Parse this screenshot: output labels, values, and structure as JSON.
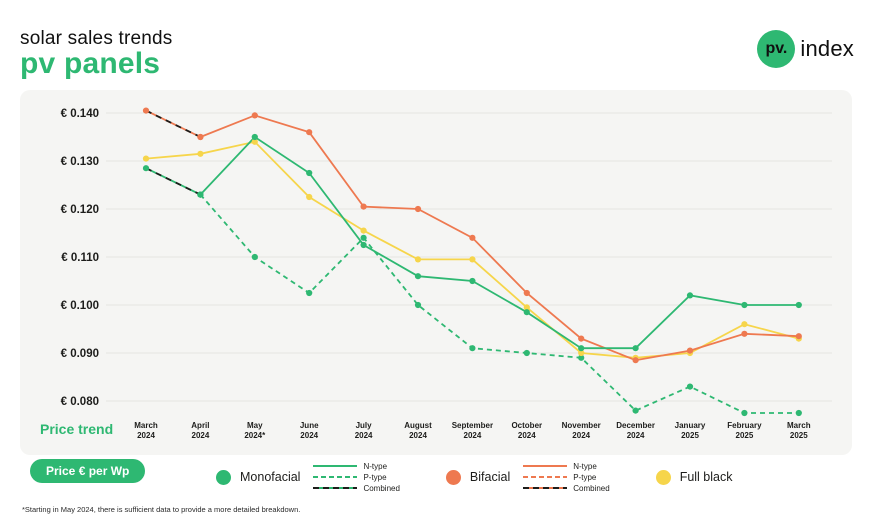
{
  "header": {
    "subtitle": "solar sales trends",
    "title": "pv panels"
  },
  "logo": {
    "circle_text": "pv.",
    "text": "index"
  },
  "panel": {
    "price_trend_label": "Price trend"
  },
  "button_label": "Price € per Wp",
  "footnote": "*Starting in May 2024, there is sufficient data to provide a more detailed breakdown.",
  "colors": {
    "green": "#2eb872",
    "orange": "#ee7950",
    "yellow": "#f6d54b",
    "combined_black": "#1d1d1b",
    "grid": "#e5e5e2",
    "panel_bg": "#f5f5f3"
  },
  "legend": {
    "groups": [
      {
        "label": "Monofacial",
        "color": "#2eb872",
        "lines": [
          {
            "label": "N-type",
            "style": "solid"
          },
          {
            "label": "P-type",
            "style": "dashed"
          },
          {
            "label": "Combined",
            "style": "combined"
          }
        ]
      },
      {
        "label": "Bifacial",
        "color": "#ee7950",
        "lines": [
          {
            "label": "N-type",
            "style": "solid"
          },
          {
            "label": "P-type",
            "style": "dashed"
          },
          {
            "label": "Combined",
            "style": "combined"
          }
        ]
      },
      {
        "label": "Full black",
        "color": "#f6d54b",
        "lines": []
      }
    ]
  },
  "chart_data": {
    "type": "line",
    "title": "solar sales trends — pv panels price trend",
    "ylabel": "Price € per Wp",
    "ylim": [
      0.0775,
      0.1405
    ],
    "grid": true,
    "legend_position": "bottom",
    "y_axis": {
      "labels": [
        "€ 0.140",
        "€ 0.130",
        "€ 0.120",
        "€ 0.110",
        "€ 0.100",
        "€ 0.090",
        "€ 0.080"
      ],
      "values": [
        0.14,
        0.13,
        0.12,
        0.11,
        0.1,
        0.09,
        0.08
      ]
    },
    "x_categories": [
      [
        "March",
        "2024"
      ],
      [
        "April",
        "2024"
      ],
      [
        "May",
        "2024*"
      ],
      [
        "June",
        "2024"
      ],
      [
        "July",
        "2024"
      ],
      [
        "August",
        "2024"
      ],
      [
        "September",
        "2024"
      ],
      [
        "October",
        "2024"
      ],
      [
        "November",
        "2024"
      ],
      [
        "December",
        "2024"
      ],
      [
        "January",
        "2025"
      ],
      [
        "February",
        "2025"
      ],
      [
        "March",
        "2025"
      ]
    ],
    "series": [
      {
        "name": "Bifacial Combined",
        "color": "#ee7950",
        "style": "combined",
        "start": 0,
        "values": [
          0.1405,
          0.135
        ]
      },
      {
        "name": "Monofacial Combined",
        "color": "#2eb872",
        "style": "combined",
        "start": 0,
        "values": [
          0.1285,
          0.123
        ]
      },
      {
        "name": "Monofacial P-type",
        "color": "#2eb872",
        "style": "dashed",
        "start": 1,
        "values": [
          0.123,
          0.11,
          0.1025,
          0.114,
          0.1,
          0.091,
          0.09,
          0.089,
          0.078,
          0.083,
          0.0775,
          0.0775
        ]
      },
      {
        "name": "Full black",
        "color": "#f6d54b",
        "style": "solid",
        "start": 0,
        "values": [
          0.1305,
          0.1315,
          0.134,
          0.1225,
          0.1155,
          0.1095,
          0.1095,
          0.0995,
          0.09,
          0.089,
          0.09,
          0.096,
          0.093
        ]
      },
      {
        "name": "Bifacial N-type",
        "color": "#ee7950",
        "style": "solid",
        "start": 1,
        "values": [
          0.135,
          0.1395,
          0.136,
          0.1205,
          0.12,
          0.114,
          0.1025,
          0.093,
          0.0885,
          0.0905,
          0.094,
          0.0935
        ]
      },
      {
        "name": "Monofacial N-type",
        "color": "#2eb872",
        "style": "solid",
        "start": 1,
        "values": [
          0.123,
          0.135,
          0.1275,
          0.1125,
          0.106,
          0.105,
          0.0985,
          0.091,
          0.091,
          0.102,
          0.1,
          0.1
        ]
      }
    ]
  }
}
